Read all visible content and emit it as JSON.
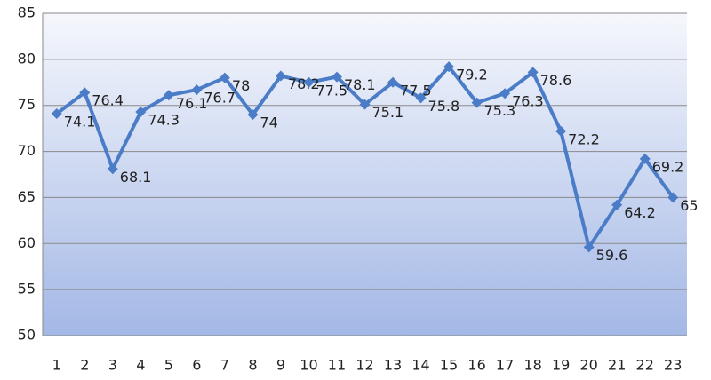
{
  "chart_data": {
    "type": "line",
    "categories": [
      "1",
      "2",
      "3",
      "4",
      "5",
      "6",
      "7",
      "8",
      "9",
      "10",
      "11",
      "12",
      "13",
      "14",
      "15",
      "16",
      "17",
      "18",
      "19",
      "20",
      "21",
      "22",
      "23"
    ],
    "values": [
      74.1,
      76.4,
      68.1,
      74.3,
      76.1,
      76.7,
      78,
      74,
      78.2,
      77.5,
      78.1,
      75.1,
      77.5,
      75.8,
      79.2,
      75.3,
      76.3,
      78.6,
      72.2,
      59.6,
      64.2,
      69.2,
      65
    ],
    "color": "#4a7cc7",
    "ylim": [
      50,
      85
    ],
    "yticks": [
      50,
      55,
      60,
      65,
      70,
      75,
      80,
      85
    ],
    "grid": true
  }
}
